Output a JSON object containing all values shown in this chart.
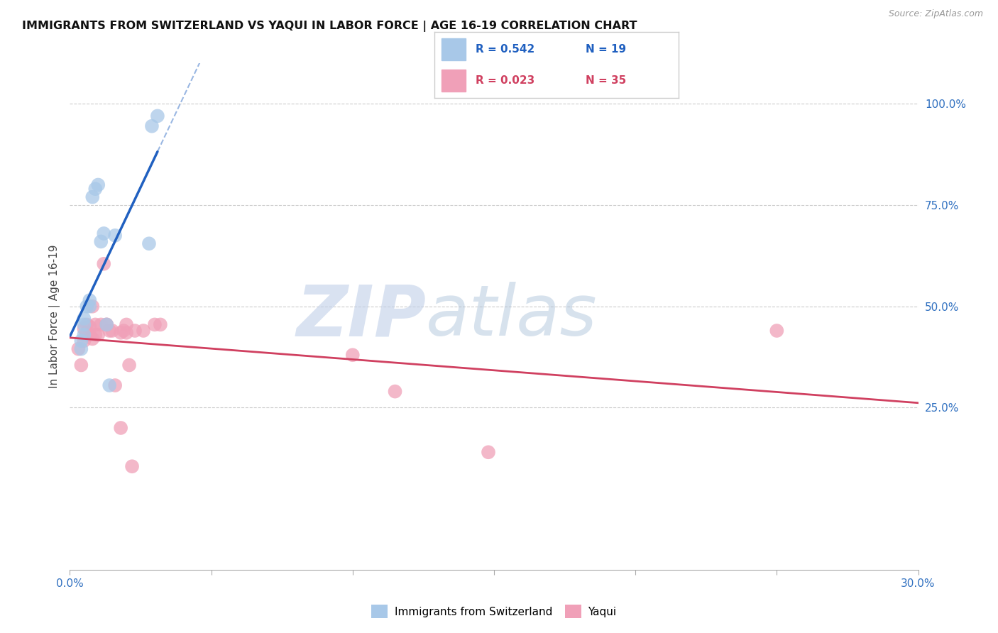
{
  "title": "IMMIGRANTS FROM SWITZERLAND VS YAQUI IN LABOR FORCE | AGE 16-19 CORRELATION CHART",
  "source": "Source: ZipAtlas.com",
  "ylabel": "In Labor Force | Age 16-19",
  "xlim": [
    0.0,
    0.3
  ],
  "ylim": [
    -0.15,
    1.1
  ],
  "legend_r1": "R = 0.542",
  "legend_n1": "N = 19",
  "legend_r2": "R = 0.023",
  "legend_n2": "N = 35",
  "color_swiss": "#a8c8e8",
  "color_yaqui": "#f0a0b8",
  "color_swiss_line": "#2060c0",
  "color_yaqui_line": "#d04060",
  "swiss_x": [
    0.004,
    0.004,
    0.005,
    0.005,
    0.005,
    0.006,
    0.007,
    0.007,
    0.008,
    0.009,
    0.01,
    0.011,
    0.012,
    0.013,
    0.014,
    0.016,
    0.028,
    0.029,
    0.031
  ],
  "swiss_y": [
    0.395,
    0.415,
    0.43,
    0.455,
    0.47,
    0.5,
    0.5,
    0.515,
    0.77,
    0.79,
    0.8,
    0.66,
    0.68,
    0.455,
    0.305,
    0.675,
    0.655,
    0.945,
    0.97
  ],
  "yaqui_x": [
    0.003,
    0.004,
    0.005,
    0.005,
    0.006,
    0.006,
    0.007,
    0.007,
    0.008,
    0.008,
    0.009,
    0.009,
    0.01,
    0.011,
    0.012,
    0.013,
    0.013,
    0.014,
    0.015,
    0.016,
    0.018,
    0.018,
    0.019,
    0.02,
    0.02,
    0.021,
    0.022,
    0.023,
    0.026,
    0.03,
    0.032,
    0.1,
    0.115,
    0.148,
    0.25
  ],
  "yaqui_y": [
    0.395,
    0.355,
    0.415,
    0.445,
    0.435,
    0.455,
    0.43,
    0.45,
    0.42,
    0.5,
    0.43,
    0.455,
    0.43,
    0.455,
    0.605,
    0.455,
    0.455,
    0.44,
    0.44,
    0.305,
    0.435,
    0.2,
    0.44,
    0.435,
    0.455,
    0.355,
    0.105,
    0.44,
    0.44,
    0.455,
    0.455,
    0.38,
    0.29,
    0.14,
    0.44
  ],
  "swiss_line_x": [
    0.0,
    0.031
  ],
  "swiss_line_solid_end": 0.031,
  "swiss_line_dashed_end": 0.095,
  "yaqui_line_x_start": 0.0,
  "yaqui_line_x_end": 0.3
}
